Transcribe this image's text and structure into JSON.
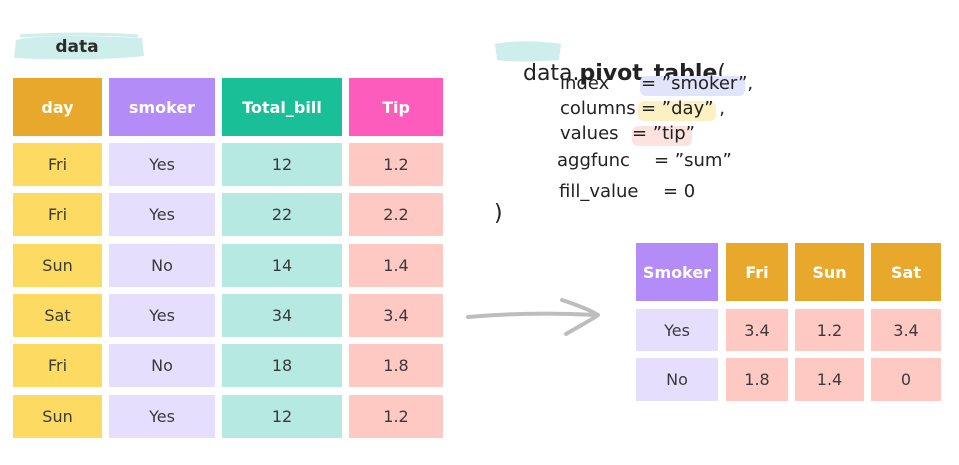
{
  "left_table": {
    "name": "data",
    "headers": [
      "day",
      "smoker",
      "Total_bill",
      "Tip"
    ],
    "rows": [
      [
        "Fri",
        "Yes",
        "12",
        "1.2"
      ],
      [
        "Fri",
        "Yes",
        "22",
        "2.2"
      ],
      [
        "Sun",
        "No",
        "14",
        "1.4"
      ],
      [
        "Sat",
        "Yes",
        "34",
        "3.4"
      ],
      [
        "Fri",
        "No",
        "18",
        "1.8"
      ],
      [
        "Sun",
        "Yes",
        "12",
        "1.2"
      ]
    ]
  },
  "code": {
    "prefix": "data.",
    "func": "pivot_table",
    "open": "(",
    "close": ")",
    "args": [
      {
        "key": "index",
        "value": "= ”smoker”,"
      },
      {
        "key": "columns",
        "value": "= ”day” ,"
      },
      {
        "key": "values",
        "value": "= ”tip”"
      },
      {
        "key": "aggfunc",
        "value": "= ”sum”"
      },
      {
        "key": "fill_value",
        "value": "= 0"
      }
    ]
  },
  "result_table": {
    "headers": [
      "Smoker",
      "Fri",
      "Sun",
      "Sat"
    ],
    "rows": [
      [
        "Yes",
        "3.4",
        "1.2",
        "3.4"
      ],
      [
        "No",
        "1.8",
        "1.4",
        "0"
      ]
    ]
  },
  "colors": {
    "day_header": "#e8a82c",
    "smoker_header": "#b38cf7",
    "bill_header": "#19bf96",
    "tip_header": "#fe5cbd",
    "day_body": "#fddb63",
    "smoker_body": "#e6defd",
    "bill_body": "#b5e9e2",
    "tip_body": "#fec8c3",
    "brush": "#cfeeea"
  },
  "icons": [
    "arrow-right-icon",
    "brush-highlight"
  ]
}
